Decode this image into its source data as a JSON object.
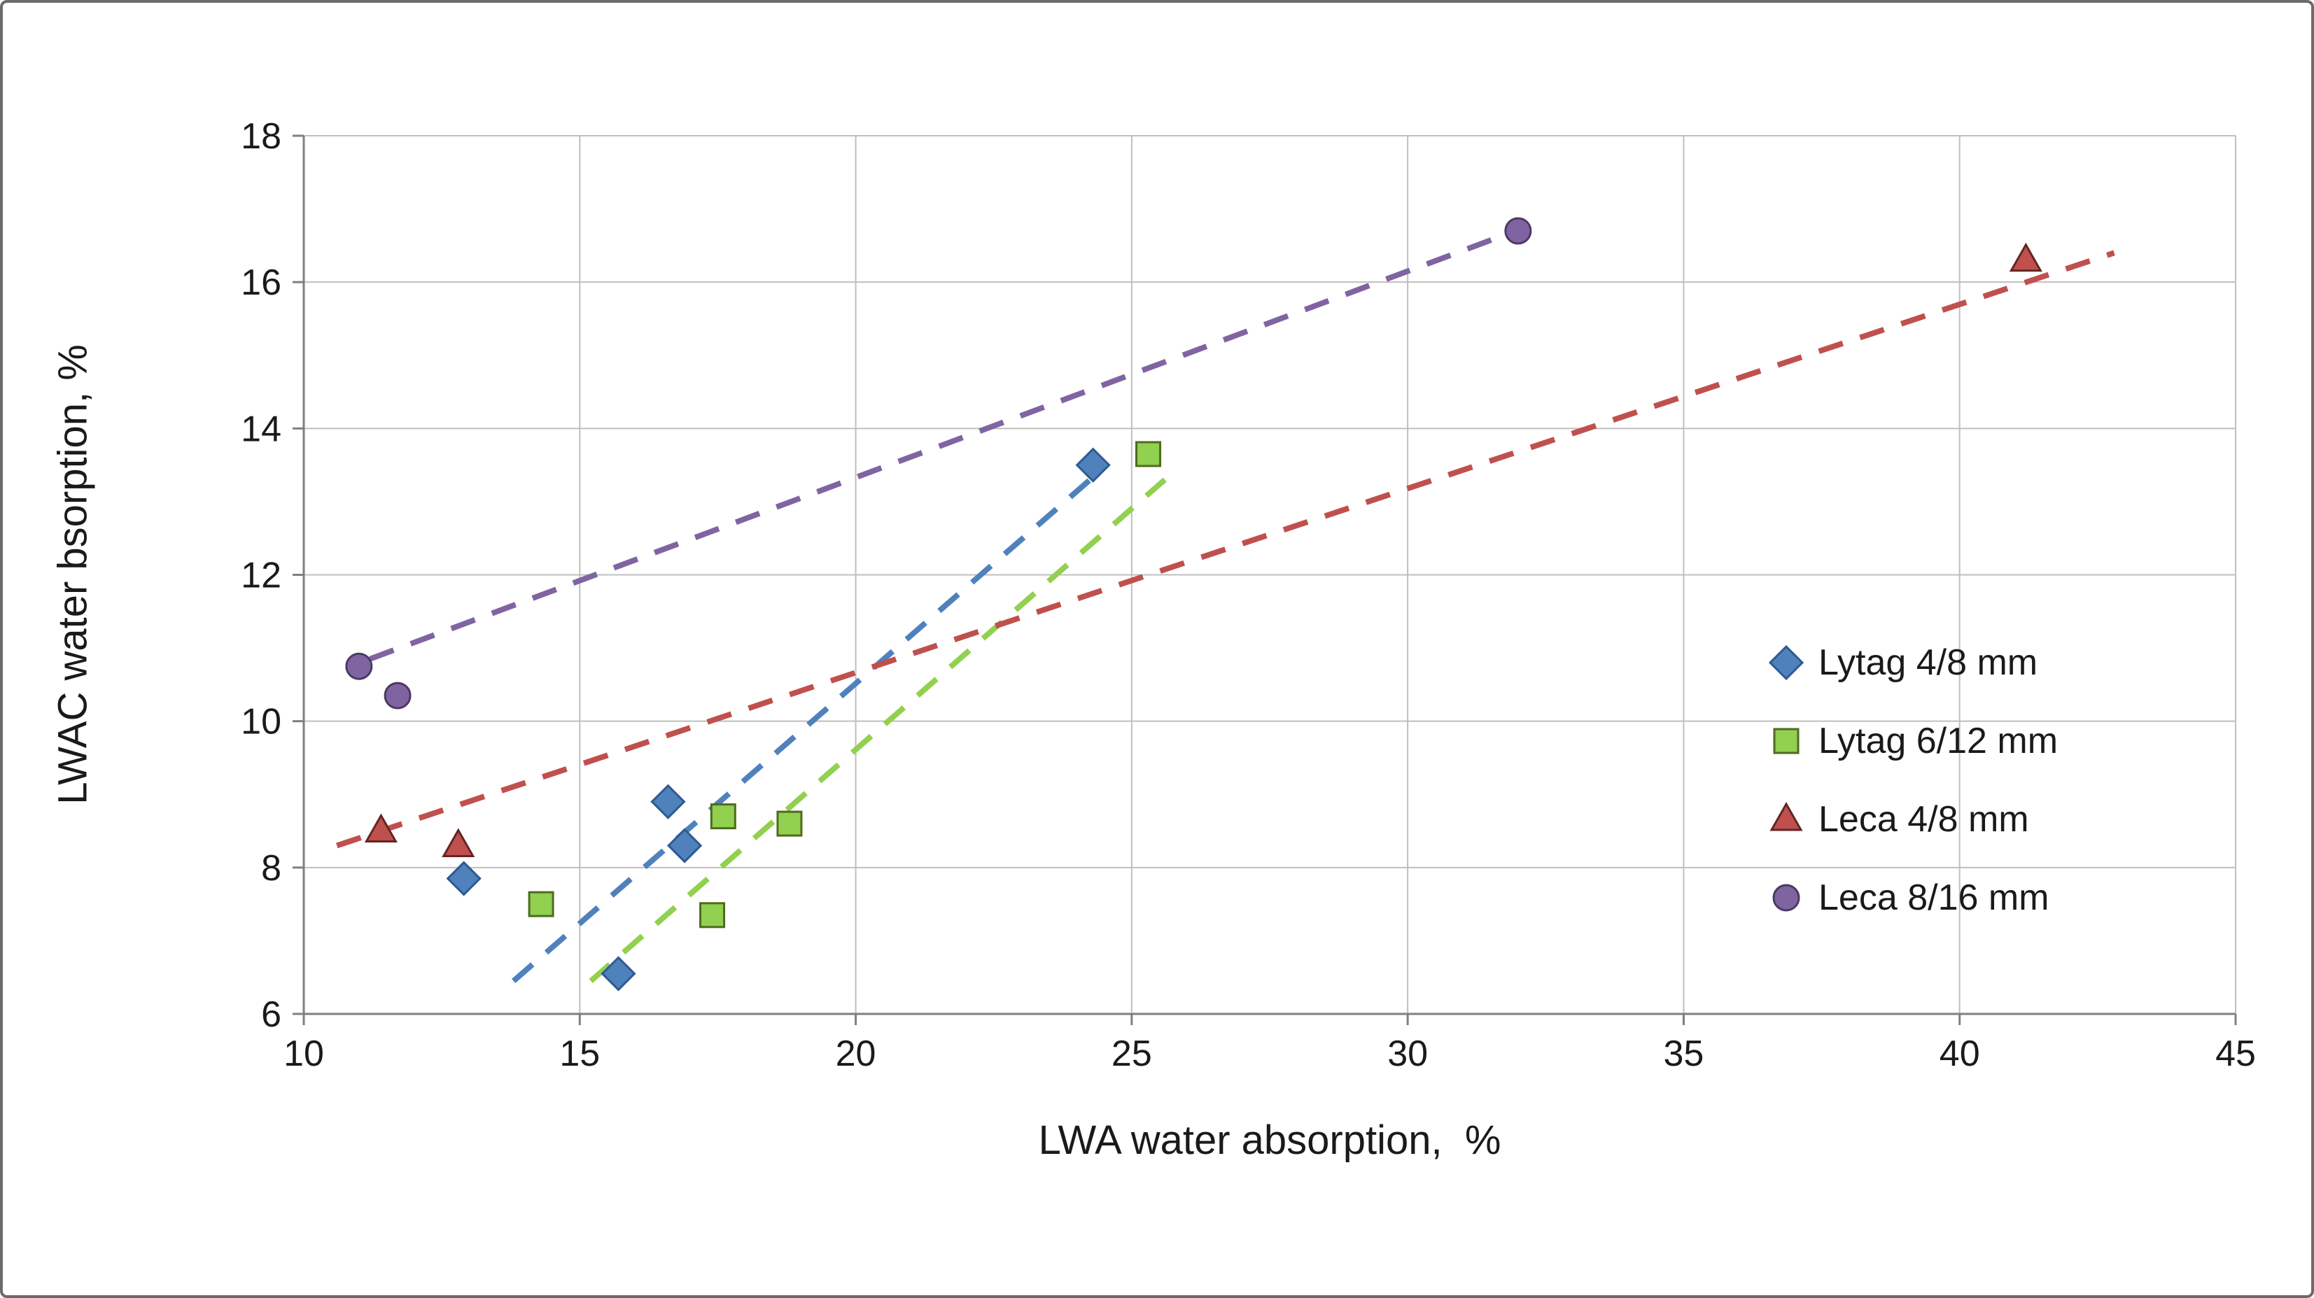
{
  "figure": {
    "background": "#ffffff",
    "border_color": "#6b6b6b"
  },
  "chart_data": {
    "type": "scatter",
    "title": "",
    "xlabel": "LWA water absorption,  %",
    "ylabel": "LWAC water bsorption, %",
    "xlim": [
      10,
      45
    ],
    "ylim": [
      6,
      18
    ],
    "xticks": [
      10,
      15,
      20,
      25,
      30,
      35,
      40,
      45
    ],
    "yticks": [
      6,
      8,
      10,
      12,
      14,
      16,
      18
    ],
    "grid": true,
    "gridline_color": "#bfbfbf",
    "axis_color": "#7f7f7f",
    "text_color": "#1a1a1a",
    "legend_position": "middle-right",
    "series": [
      {
        "name": "Lytag 4/8 mm",
        "marker": "diamond",
        "color": "#4F81BD",
        "edge_color": "#2E5A8F",
        "points": [
          [
            12.9,
            7.85
          ],
          [
            15.7,
            6.55
          ],
          [
            16.6,
            8.9
          ],
          [
            16.9,
            8.3
          ],
          [
            24.3,
            13.5
          ]
        ],
        "trendline": {
          "style": "dashed",
          "start": [
            13.8,
            6.45
          ],
          "end": [
            24.4,
            13.4
          ]
        }
      },
      {
        "name": "Lytag 6/12 mm",
        "marker": "square",
        "color": "#92D050",
        "edge_color": "#4F6B1F",
        "points": [
          [
            14.3,
            7.5
          ],
          [
            17.4,
            7.35
          ],
          [
            17.6,
            8.7
          ],
          [
            18.8,
            8.6
          ],
          [
            25.3,
            13.65
          ]
        ],
        "trendline": {
          "style": "dashed",
          "start": [
            15.2,
            6.45
          ],
          "end": [
            25.6,
            13.3
          ]
        }
      },
      {
        "name": "Leca 4/8 mm",
        "marker": "triangle",
        "color": "#C0504D",
        "edge_color": "#632523",
        "points": [
          [
            11.4,
            8.5
          ],
          [
            12.8,
            8.3
          ],
          [
            41.2,
            16.3
          ]
        ],
        "trendline": {
          "style": "dashed",
          "start": [
            10.6,
            8.3
          ],
          "end": [
            42.8,
            16.4
          ]
        }
      },
      {
        "name": "Leca 8/16 mm",
        "marker": "circle",
        "color": "#8064A2",
        "edge_color": "#4A3A63",
        "points": [
          [
            11.0,
            10.75
          ],
          [
            11.7,
            10.35
          ],
          [
            32.0,
            16.7
          ]
        ],
        "trendline": {
          "style": "dashed",
          "start": [
            11.2,
            10.85
          ],
          "end": [
            31.6,
            16.6
          ]
        }
      }
    ]
  }
}
